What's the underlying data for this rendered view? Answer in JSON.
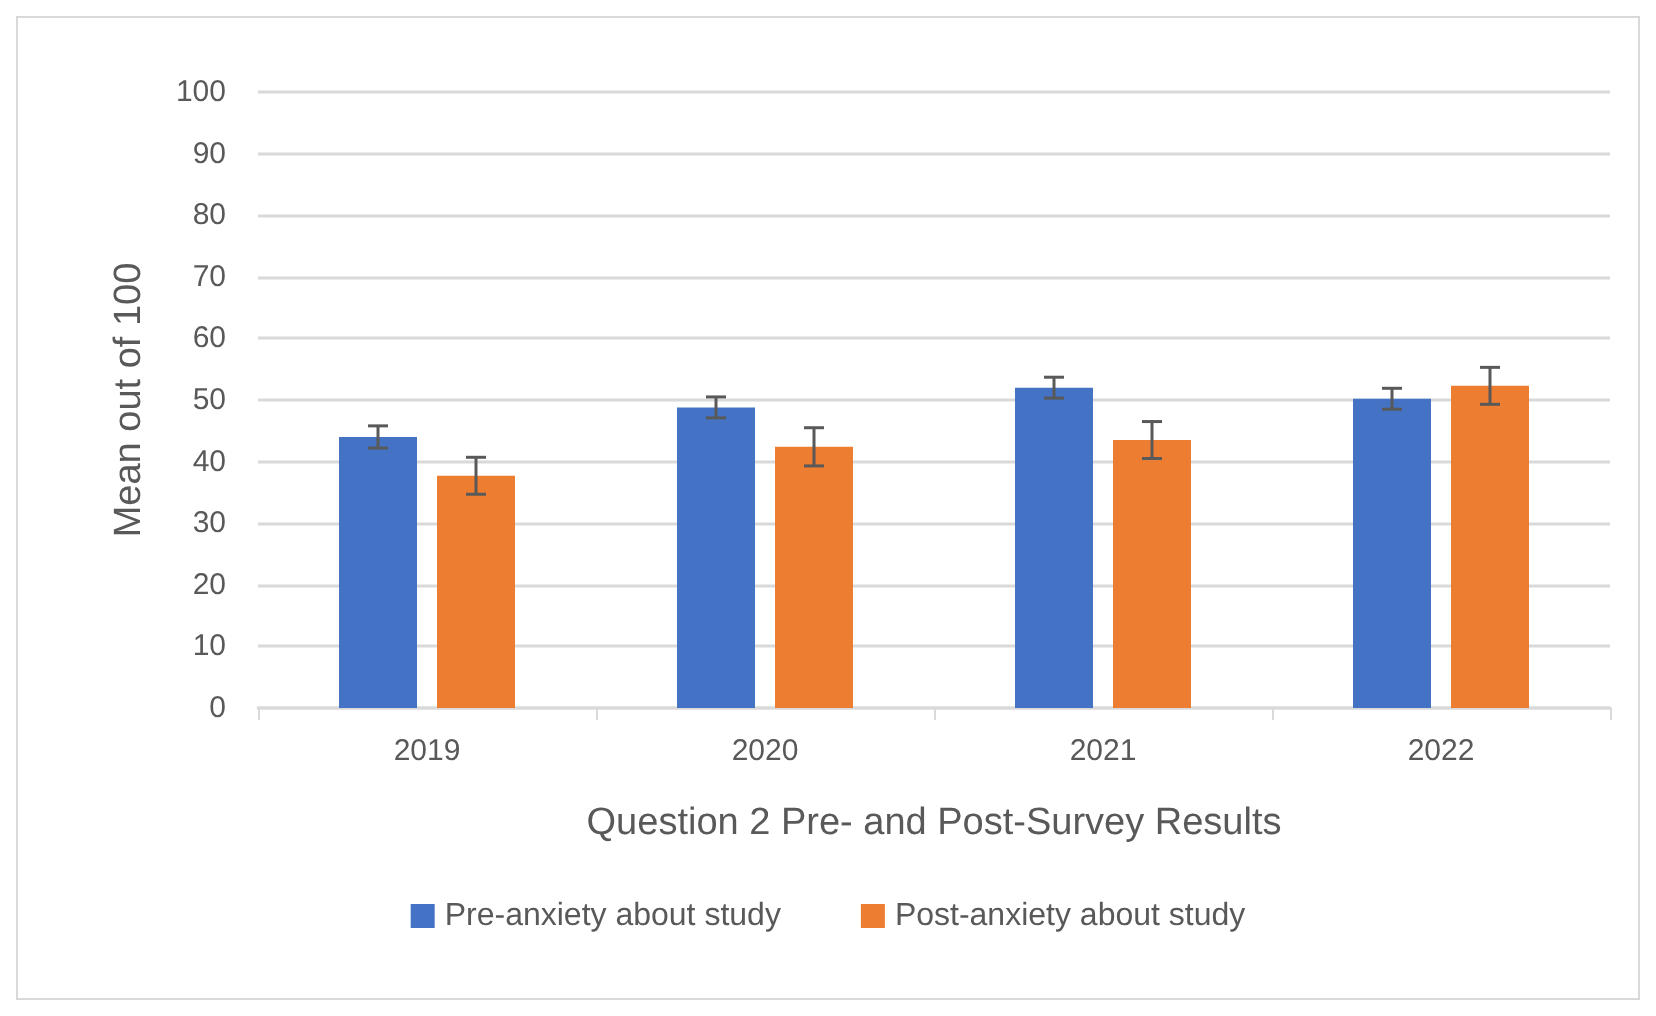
{
  "chart_data": {
    "type": "bar",
    "xlabel": "Question 2 Pre- and Post-Survey Results",
    "ylabel": "Mean out of 100",
    "categories": [
      "2019",
      "2020",
      "2021",
      "2022"
    ],
    "series": [
      {
        "name": "Pre-anxiety about study",
        "color": "#4472c4",
        "values": [
          44.0,
          48.8,
          52.0,
          50.2
        ],
        "errors": [
          1.8,
          1.7,
          1.7,
          1.7
        ]
      },
      {
        "name": "Post-anxiety about study",
        "color": "#ed7d31",
        "values": [
          37.7,
          42.4,
          43.5,
          52.3
        ],
        "errors": [
          3.0,
          3.1,
          3.0,
          3.0
        ]
      }
    ],
    "ylim": [
      0,
      100
    ],
    "yticks": [
      0,
      10,
      20,
      30,
      40,
      50,
      60,
      70,
      80,
      90,
      100
    ],
    "grid": "y",
    "legend": "bottom"
  }
}
